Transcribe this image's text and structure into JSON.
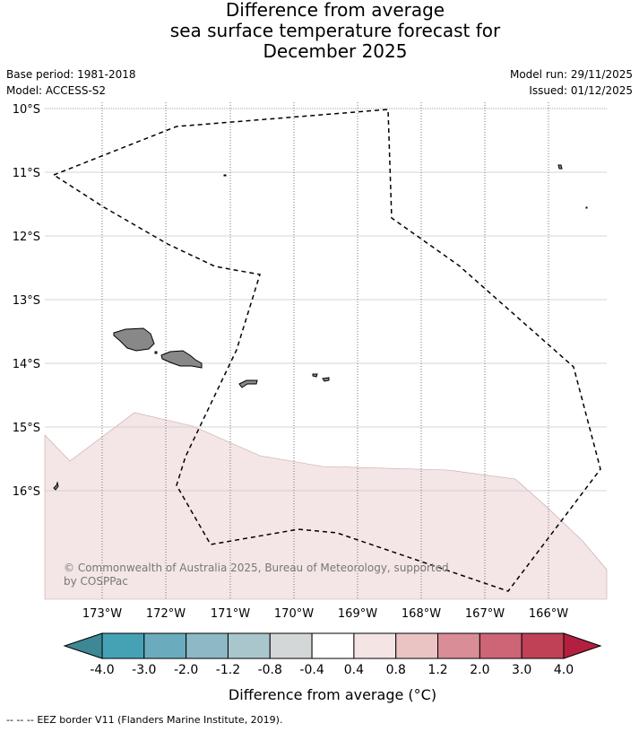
{
  "title": {
    "line1": "Difference from average",
    "line2": "sea surface temperature forecast for",
    "line3": "December 2025"
  },
  "meta": {
    "base_period": "Base period: 1981-2018",
    "model": "Model: ACCESS-S2",
    "model_run": "Model run: 29/11/2025",
    "issued": "Issued: 01/12/2025"
  },
  "map": {
    "lat_labels": [
      "10°S",
      "11°S",
      "12°S",
      "13°S",
      "14°S",
      "15°S",
      "16°S"
    ],
    "lon_labels": [
      "173°W",
      "172°W",
      "171°W",
      "170°W",
      "169°W",
      "168°W",
      "167°W",
      "166°W"
    ],
    "copyright_line1": "© Commonwealth of Australia 2025, Bureau of Meteorology, supported",
    "copyright_line2": "by COSPPac",
    "anomaly_fill_color": "#f4e6e6",
    "land_color": "#888888"
  },
  "colorbar": {
    "labels": [
      "-4.0",
      "-3.0",
      "-2.0",
      "-1.2",
      "-0.8",
      "-0.4",
      "0.4",
      "0.8",
      "1.2",
      "2.0",
      "3.0",
      "4.0"
    ],
    "colors": [
      "#45a2b5",
      "#6aacbd",
      "#8cb9c5",
      "#a9c6cc",
      "#d4d7d7",
      "#ffffff",
      "#f4e4e4",
      "#e9c4c2",
      "#d98d97",
      "#cd6577",
      "#c04155"
    ],
    "under_color": "#3e8795",
    "over_color": "#b3203f",
    "axis_label": "Difference from average (°C)"
  },
  "footer": {
    "legend_symbol": "--  --  --",
    "legend_text": "EEZ border V11 (Flanders Marine Institute, 2019)."
  }
}
